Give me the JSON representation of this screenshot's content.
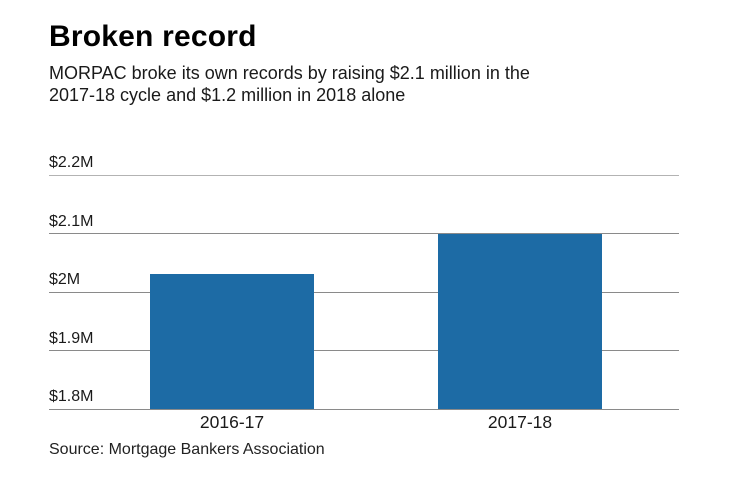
{
  "header": {
    "title": "Broken record",
    "subtitle": "MORPAC broke its own records by raising $2.1 million in the\n2017-18 cycle and $1.2 million in 2018 alone"
  },
  "chart_data": {
    "type": "bar",
    "title": "Broken record",
    "categories": [
      "2016-17",
      "2017-18"
    ],
    "values": [
      2.03,
      2.1
    ],
    "ylabel": "",
    "xlabel": "",
    "ylim": [
      1.8,
      2.25
    ],
    "yticks": [
      {
        "value": 2.2,
        "label": "$2.2M"
      },
      {
        "value": 2.1,
        "label": "$2.1M"
      },
      {
        "value": 2.0,
        "label": "$2M"
      },
      {
        "value": 1.9,
        "label": "$1.9M"
      },
      {
        "value": 1.8,
        "label": "$1.8M"
      }
    ],
    "grid": "horizontal",
    "legend": "none"
  },
  "footer": {
    "source": "Source: Mortgage Bankers Association"
  },
  "colors": {
    "bar": "#1d6ba5",
    "grid": "#8a8a8a",
    "grid_top": "#b3b3b3",
    "text": "#1a1a1a"
  }
}
